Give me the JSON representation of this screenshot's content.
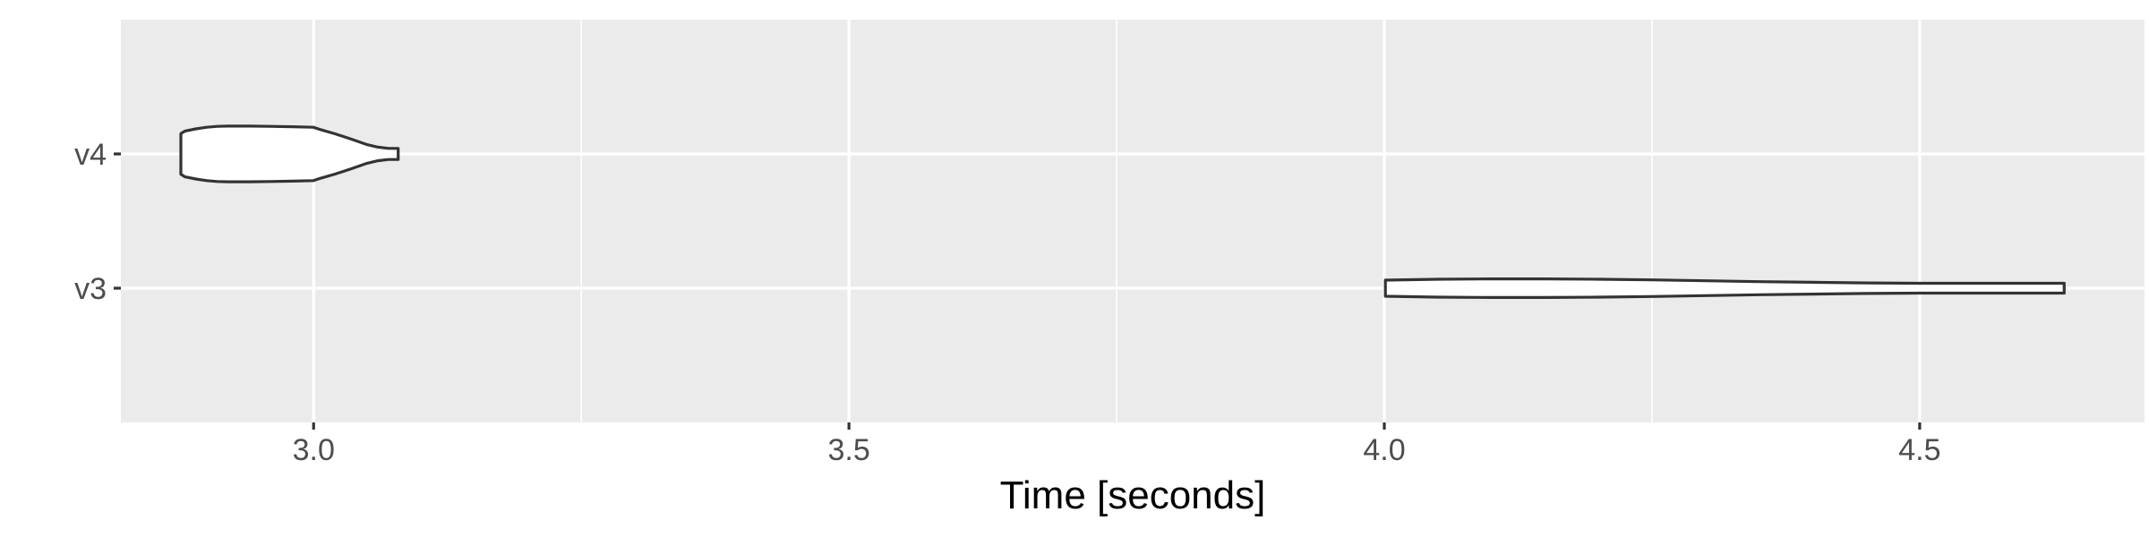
{
  "chart_data": {
    "type": "violin",
    "orientation": "horizontal",
    "title": "",
    "xlabel": "Time [seconds]",
    "ylabel": "",
    "categories": [
      "v3",
      "v4"
    ],
    "xlim": [
      2.82,
      4.71
    ],
    "x_ticks": [
      3.0,
      3.5,
      4.0,
      4.5
    ],
    "x_tick_labels": [
      "3.0",
      "3.5",
      "4.0",
      "4.5"
    ],
    "grid": true,
    "legend": "none",
    "colors": {
      "panel_background": "#ebebeb",
      "gridline": "#ffffff",
      "violin_fill": "#ffffff",
      "violin_outline": "#333333",
      "tick_label": "#4d4d4d",
      "axis_title": "#000000"
    },
    "series": [
      {
        "category": "v4",
        "min": 2.876,
        "max": 3.079,
        "density_profile": [
          [
            2.876,
            0.66
          ],
          [
            2.88,
            0.74
          ],
          [
            2.89,
            0.81
          ],
          [
            2.9,
            0.86
          ],
          [
            2.91,
            0.89
          ],
          [
            2.92,
            0.9
          ],
          [
            2.94,
            0.9
          ],
          [
            2.96,
            0.89
          ],
          [
            2.98,
            0.88
          ],
          [
            3.0,
            0.86
          ],
          [
            3.005,
            0.8
          ],
          [
            3.02,
            0.65
          ],
          [
            3.035,
            0.48
          ],
          [
            3.05,
            0.3
          ],
          [
            3.06,
            0.22
          ],
          [
            3.07,
            0.18
          ],
          [
            3.079,
            0.18
          ]
        ]
      },
      {
        "category": "v3",
        "min": 4.001,
        "max": 4.635,
        "density_profile": [
          [
            4.001,
            0.26
          ],
          [
            4.05,
            0.29
          ],
          [
            4.1,
            0.3
          ],
          [
            4.15,
            0.3
          ],
          [
            4.2,
            0.29
          ],
          [
            4.25,
            0.27
          ],
          [
            4.3,
            0.24
          ],
          [
            4.35,
            0.21
          ],
          [
            4.4,
            0.19
          ],
          [
            4.45,
            0.17
          ],
          [
            4.5,
            0.16
          ],
          [
            4.55,
            0.16
          ],
          [
            4.6,
            0.16
          ],
          [
            4.635,
            0.16
          ]
        ]
      }
    ]
  }
}
